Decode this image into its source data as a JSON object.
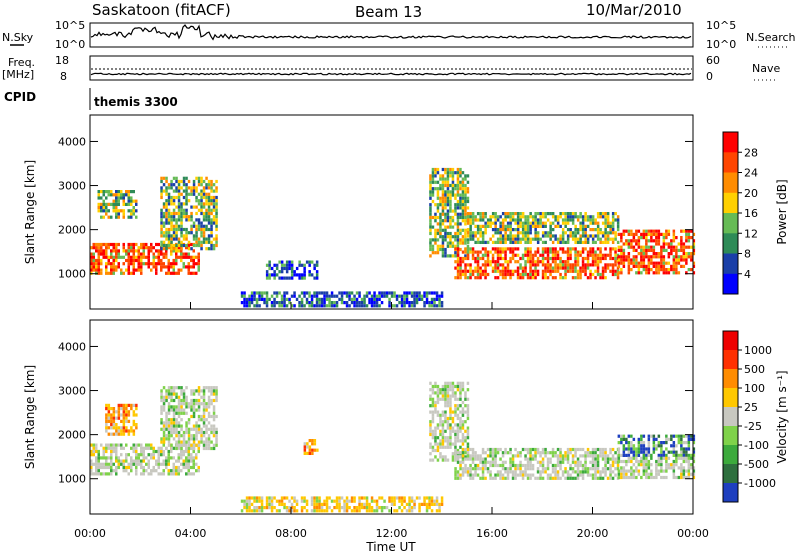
{
  "header": {
    "station": "Saskatoon (fitACF)",
    "beam": "Beam 13",
    "date": "10/Mar/2010"
  },
  "top_panels": {
    "nsky_label": "N.Sky",
    "nsky_top_tick": "10^5",
    "nsky_bottom_tick": "10^0",
    "nsearch_label": "N.Search",
    "nsearch_top_tick": "10^5",
    "nsearch_bottom_tick": "10^0",
    "freq_label_1": "Freq.",
    "freq_label_2": "[MHz]",
    "freq_top_tick": "18",
    "freq_bottom_tick": "8",
    "nave_label": "Nave",
    "nave_top_tick": "60",
    "nave_bottom_tick": "0",
    "cpid_label": "CPID",
    "cpid_text": "themis 3300"
  },
  "colors": {
    "power_scale": [
      "#0000ff",
      "#1a3fa8",
      "#2e8b57",
      "#66bb55",
      "#ffd000",
      "#ff8c00",
      "#ff4500",
      "#ff0000"
    ],
    "velocity_scale": [
      "#1e3fbf",
      "#2e6f3e",
      "#3caa3c",
      "#7fd24a",
      "#c8c8c0",
      "#ffc800",
      "#ff8c00",
      "#ff3000",
      "#ee0000"
    ]
  },
  "chart_data": [
    {
      "type": "heatmap",
      "name": "power",
      "xlabel": "Time UT",
      "ylabel": "Slant Range [km]",
      "x_ticks": [
        "00:00",
        "04:00",
        "08:00",
        "12:00",
        "16:00",
        "20:00",
        "00:00"
      ],
      "xlim_hours": [
        0,
        24
      ],
      "ylim": [
        200,
        4600
      ],
      "y_ticks": [
        1000,
        2000,
        3000,
        4000
      ],
      "colorbar": {
        "label": "Power [dB]",
        "ticks": [
          "28",
          "24",
          "20",
          "16",
          "12",
          "8",
          "4"
        ],
        "range": [
          0,
          32
        ]
      },
      "regions": [
        {
          "t0": 0.0,
          "t1": 4.3,
          "r0": 1000,
          "r1": 1700,
          "level": "high"
        },
        {
          "t0": 0.3,
          "t1": 1.8,
          "r0": 2300,
          "r1": 2900,
          "level": "mid"
        },
        {
          "t0": 2.8,
          "t1": 5.0,
          "r0": 1600,
          "r1": 3200,
          "level": "mid"
        },
        {
          "t0": 7.0,
          "t1": 9.0,
          "r0": 900,
          "r1": 1300,
          "level": "low"
        },
        {
          "t0": 13.5,
          "t1": 15.0,
          "r0": 1400,
          "r1": 3400,
          "level": "mid"
        },
        {
          "t0": 14.5,
          "t1": 21.0,
          "r0": 900,
          "r1": 1600,
          "level": "high"
        },
        {
          "t0": 15.0,
          "t1": 21.0,
          "r0": 1700,
          "r1": 2400,
          "level": "mid"
        },
        {
          "t0": 21.0,
          "t1": 24.0,
          "r0": 1000,
          "r1": 2000,
          "level": "high"
        },
        {
          "t0": 6.0,
          "t1": 14.0,
          "r0": 250,
          "r1": 600,
          "level": "low"
        }
      ]
    },
    {
      "type": "heatmap",
      "name": "velocity",
      "xlabel": "Time UT",
      "ylabel": "Slant Range [km]",
      "x_ticks": [
        "00:00",
        "04:00",
        "08:00",
        "12:00",
        "16:00",
        "20:00",
        "00:00"
      ],
      "xlim_hours": [
        0,
        24
      ],
      "ylim": [
        200,
        4600
      ],
      "y_ticks": [
        1000,
        2000,
        3000,
        4000
      ],
      "colorbar": {
        "label": "Velocity [m s⁻¹]",
        "ticks": [
          "1000",
          "500",
          "100",
          "25",
          "-25",
          "-100",
          "-500",
          "-1000"
        ],
        "range": [
          -1000,
          1000
        ]
      },
      "regions": [
        {
          "t0": 0.0,
          "t1": 4.3,
          "r0": 1100,
          "r1": 1800,
          "level": "zero"
        },
        {
          "t0": 0.6,
          "t1": 1.8,
          "r0": 2000,
          "r1": 2700,
          "level": "neg"
        },
        {
          "t0": 2.8,
          "t1": 5.0,
          "r0": 1700,
          "r1": 3100,
          "level": "zero"
        },
        {
          "t0": 8.5,
          "t1": 9.0,
          "r0": 1600,
          "r1": 1900,
          "level": "neg"
        },
        {
          "t0": 13.5,
          "t1": 15.0,
          "r0": 1400,
          "r1": 3200,
          "level": "zero"
        },
        {
          "t0": 14.5,
          "t1": 21.0,
          "r0": 1000,
          "r1": 1700,
          "level": "zero"
        },
        {
          "t0": 21.0,
          "t1": 24.0,
          "r0": 1500,
          "r1": 2000,
          "level": "pos"
        },
        {
          "t0": 21.0,
          "t1": 24.0,
          "r0": 1000,
          "r1": 1500,
          "level": "zero"
        },
        {
          "t0": 6.0,
          "t1": 14.0,
          "r0": 250,
          "r1": 600,
          "level": "weakneg"
        }
      ]
    }
  ]
}
